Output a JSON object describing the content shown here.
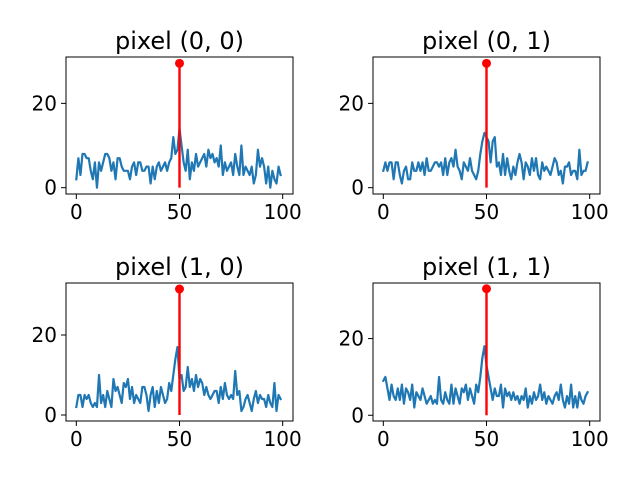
{
  "chart_data": [
    {
      "type": "line",
      "title": "pixel (0, 0)",
      "xlabel": "",
      "ylabel": "",
      "xlim": [
        -5,
        105
      ],
      "ylim": [
        -1.5,
        31
      ],
      "xticks": [
        0,
        50,
        100
      ],
      "yticks": [
        0,
        20
      ],
      "grid": false,
      "series": [
        {
          "color": "#1f77b4",
          "x": [
            0,
            1,
            2,
            3,
            4,
            5,
            6,
            7,
            8,
            9,
            10,
            11,
            12,
            13,
            14,
            15,
            16,
            17,
            18,
            19,
            20,
            21,
            22,
            23,
            24,
            25,
            26,
            27,
            28,
            29,
            30,
            31,
            32,
            33,
            34,
            35,
            36,
            37,
            38,
            39,
            40,
            41,
            42,
            43,
            44,
            45,
            46,
            47,
            48,
            49,
            50,
            51,
            52,
            53,
            54,
            55,
            56,
            57,
            58,
            59,
            60,
            61,
            62,
            63,
            64,
            65,
            66,
            67,
            68,
            69,
            70,
            71,
            72,
            73,
            74,
            75,
            76,
            77,
            78,
            79,
            80,
            81,
            82,
            83,
            84,
            85,
            86,
            87,
            88,
            89,
            90,
            91,
            92,
            93,
            94,
            95,
            96,
            97,
            98,
            99
          ],
          "y": [
            2,
            7,
            3,
            8,
            8,
            7,
            7,
            4,
            2,
            6,
            0,
            6,
            4,
            6,
            8,
            8,
            7,
            4,
            6,
            2,
            7,
            7,
            5,
            4,
            4,
            4,
            2,
            5,
            6,
            3,
            6,
            6,
            4,
            4,
            5,
            5,
            1,
            5,
            2,
            5,
            6,
            4,
            5,
            6,
            4,
            6,
            7,
            12,
            8,
            9,
            14,
            10,
            6,
            4,
            9,
            2,
            6,
            4,
            8,
            5,
            6,
            7,
            8,
            5,
            9,
            7,
            8,
            6,
            7,
            5,
            10,
            3,
            6,
            4,
            5,
            6,
            3,
            8,
            5,
            3,
            10,
            3,
            5,
            4,
            3,
            5,
            1,
            3,
            9,
            5,
            7,
            5,
            1,
            5,
            0,
            4,
            2,
            1,
            5,
            3
          ]
        }
      ],
      "stem": {
        "x": 50,
        "y": 29.5,
        "color": "#ff0000"
      }
    },
    {
      "type": "line",
      "title": "pixel (0, 1)",
      "xlabel": "",
      "ylabel": "",
      "xlim": [
        -5,
        105
      ],
      "ylim": [
        -1.5,
        31
      ],
      "xticks": [
        0,
        50,
        100
      ],
      "yticks": [
        0,
        20
      ],
      "grid": false,
      "series": [
        {
          "color": "#1f77b4",
          "x": [
            0,
            1,
            2,
            3,
            4,
            5,
            6,
            7,
            8,
            9,
            10,
            11,
            12,
            13,
            14,
            15,
            16,
            17,
            18,
            19,
            20,
            21,
            22,
            23,
            24,
            25,
            26,
            27,
            28,
            29,
            30,
            31,
            32,
            33,
            34,
            35,
            36,
            37,
            38,
            39,
            40,
            41,
            42,
            43,
            44,
            45,
            46,
            47,
            48,
            49,
            50,
            51,
            52,
            53,
            54,
            55,
            56,
            57,
            58,
            59,
            60,
            61,
            62,
            63,
            64,
            65,
            66,
            67,
            68,
            69,
            70,
            71,
            72,
            73,
            74,
            75,
            76,
            77,
            78,
            79,
            80,
            81,
            82,
            83,
            84,
            85,
            86,
            87,
            88,
            89,
            90,
            91,
            92,
            93,
            94,
            95,
            96,
            97,
            98,
            99
          ],
          "y": [
            4,
            6,
            4,
            6,
            6,
            2,
            6,
            6,
            3,
            1,
            4,
            5,
            2,
            2,
            6,
            4,
            4,
            6,
            4,
            6,
            3,
            7,
            4,
            4,
            5,
            6,
            6,
            5,
            6,
            3,
            7,
            3,
            6,
            7,
            5,
            9,
            5,
            4,
            2,
            6,
            5,
            4,
            7,
            4,
            3,
            2,
            4,
            8,
            11,
            13,
            12,
            11,
            6,
            11,
            12,
            5,
            6,
            3,
            8,
            3,
            7,
            4,
            2,
            5,
            3,
            6,
            8,
            6,
            2,
            6,
            5,
            3,
            7,
            4,
            7,
            3,
            2,
            6,
            4,
            5,
            4,
            3,
            5,
            7,
            6,
            3,
            4,
            1,
            5,
            5,
            6,
            3,
            4,
            4,
            2,
            9,
            3,
            4,
            4,
            6
          ]
        }
      ],
      "stem": {
        "x": 50,
        "y": 29.5,
        "color": "#ff0000"
      }
    },
    {
      "type": "line",
      "title": "pixel (1, 0)",
      "xlabel": "",
      "ylabel": "",
      "xlim": [
        -5,
        105
      ],
      "ylim": [
        -1.5,
        33
      ],
      "xticks": [
        0,
        50,
        100
      ],
      "yticks": [
        0,
        20
      ],
      "grid": false,
      "series": [
        {
          "color": "#1f77b4",
          "x": [
            0,
            1,
            2,
            3,
            4,
            5,
            6,
            7,
            8,
            9,
            10,
            11,
            12,
            13,
            14,
            15,
            16,
            17,
            18,
            19,
            20,
            21,
            22,
            23,
            24,
            25,
            26,
            27,
            28,
            29,
            30,
            31,
            32,
            33,
            34,
            35,
            36,
            37,
            38,
            39,
            40,
            41,
            42,
            43,
            44,
            45,
            46,
            47,
            48,
            49,
            50,
            51,
            52,
            53,
            54,
            55,
            56,
            57,
            58,
            59,
            60,
            61,
            62,
            63,
            64,
            65,
            66,
            67,
            68,
            69,
            70,
            71,
            72,
            73,
            74,
            75,
            76,
            77,
            78,
            79,
            80,
            81,
            82,
            83,
            84,
            85,
            86,
            87,
            88,
            89,
            90,
            91,
            92,
            93,
            94,
            95,
            96,
            97,
            98,
            99
          ],
          "y": [
            2,
            5,
            5,
            2,
            5,
            4,
            5,
            3,
            2,
            3,
            2,
            10,
            3,
            5,
            2,
            6,
            4,
            2,
            9,
            6,
            7,
            5,
            3,
            8,
            7,
            9,
            4,
            7,
            3,
            5,
            4,
            3,
            7,
            7,
            5,
            1,
            5,
            7,
            2,
            6,
            3,
            7,
            5,
            3,
            4,
            8,
            6,
            10,
            14,
            17,
            9,
            10,
            6,
            7,
            12,
            7,
            9,
            6,
            10,
            7,
            9,
            8,
            5,
            7,
            5,
            4,
            5,
            6,
            6,
            3,
            7,
            4,
            8,
            5,
            4,
            5,
            4,
            11,
            5,
            6,
            1,
            2,
            4,
            5,
            3,
            1,
            4,
            6,
            3,
            5,
            4,
            4,
            2,
            5,
            3,
            2,
            8,
            1,
            5,
            4
          ]
        }
      ],
      "stem": {
        "x": 50,
        "y": 31.5,
        "color": "#ff0000"
      }
    },
    {
      "type": "line",
      "title": "pixel (1, 1)",
      "xlabel": "",
      "ylabel": "",
      "xlim": [
        -5,
        105
      ],
      "ylim": [
        -1.5,
        34.5
      ],
      "xticks": [
        0,
        50,
        100
      ],
      "yticks": [
        0,
        20
      ],
      "grid": false,
      "series": [
        {
          "color": "#1f77b4",
          "x": [
            0,
            1,
            2,
            3,
            4,
            5,
            6,
            7,
            8,
            9,
            10,
            11,
            12,
            13,
            14,
            15,
            16,
            17,
            18,
            19,
            20,
            21,
            22,
            23,
            24,
            25,
            26,
            27,
            28,
            29,
            30,
            31,
            32,
            33,
            34,
            35,
            36,
            37,
            38,
            39,
            40,
            41,
            42,
            43,
            44,
            45,
            46,
            47,
            48,
            49,
            50,
            51,
            52,
            53,
            54,
            55,
            56,
            57,
            58,
            59,
            60,
            61,
            62,
            63,
            64,
            65,
            66,
            67,
            68,
            69,
            70,
            71,
            72,
            73,
            74,
            75,
            76,
            77,
            78,
            79,
            80,
            81,
            82,
            83,
            84,
            85,
            86,
            87,
            88,
            89,
            90,
            91,
            92,
            93,
            94,
            95,
            96,
            97,
            98,
            99
          ],
          "y": [
            9,
            10,
            7,
            4,
            8,
            5,
            4,
            7,
            4,
            8,
            3,
            7,
            6,
            4,
            8,
            2,
            6,
            5,
            4,
            7,
            5,
            3,
            4,
            5,
            3,
            4,
            3,
            10,
            4,
            3,
            6,
            4,
            3,
            8,
            3,
            7,
            5,
            3,
            7,
            6,
            8,
            4,
            7,
            5,
            3,
            8,
            6,
            10,
            15,
            18,
            13,
            10,
            7,
            4,
            7,
            5,
            5,
            8,
            2,
            7,
            5,
            6,
            4,
            6,
            4,
            5,
            3,
            5,
            4,
            7,
            2,
            5,
            3,
            6,
            4,
            5,
            8,
            4,
            6,
            3,
            5,
            4,
            3,
            5,
            6,
            4,
            8,
            4,
            2,
            5,
            3,
            8,
            2,
            5,
            2,
            6,
            4,
            3,
            5,
            6
          ]
        }
      ],
      "stem": {
        "x": 50,
        "y": 33,
        "color": "#ff0000"
      }
    }
  ]
}
